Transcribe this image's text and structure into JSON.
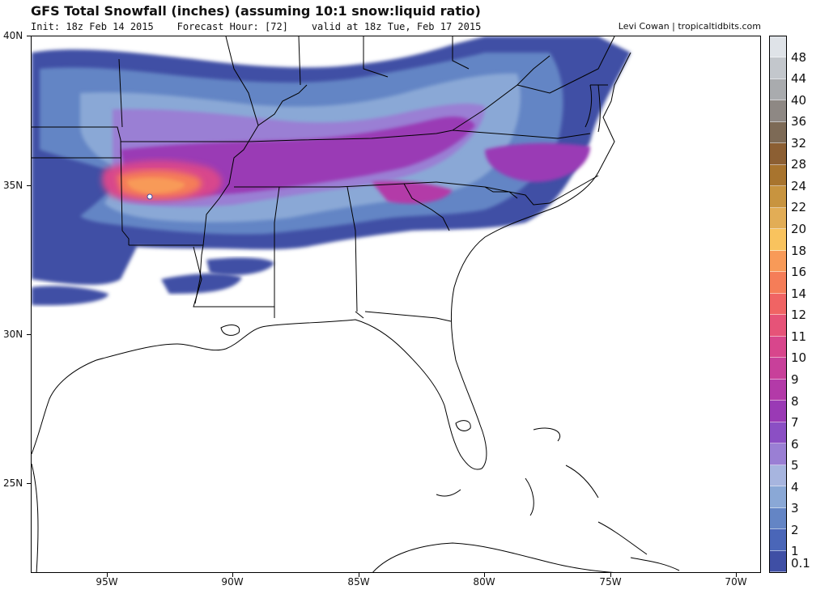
{
  "header": {
    "title": "GFS Total Snowfall (inches) (assuming 10:1 snow:liquid ratio)",
    "init": "Init: 18z Feb 14 2015",
    "forecast_hour": "Forecast Hour: [72]",
    "valid": "valid at 18z Tue, Feb 17 2015",
    "credit": "Levi Cowan | tropicaltidbits.com"
  },
  "map": {
    "lat_labels": [
      "40N",
      "35N",
      "30N",
      "25N"
    ],
    "lon_labels": [
      "95W",
      "90W",
      "85W",
      "80W",
      "75W",
      "70W"
    ],
    "bounds": {
      "west": -97.8,
      "east": -68.8,
      "south": 22.0,
      "north": 40.0
    }
  },
  "colorbar": {
    "levels": [
      "0.1",
      "1",
      "2",
      "3",
      "4",
      "5",
      "6",
      "7",
      "8",
      "9",
      "10",
      "11",
      "12",
      "14",
      "16",
      "18",
      "20",
      "22",
      "24",
      "28",
      "32",
      "36",
      "40",
      "44",
      "48"
    ],
    "colors": [
      "#3f4fa5",
      "#4a66b8",
      "#6485c5",
      "#8aa8d6",
      "#a7b5df",
      "#9a7fd4",
      "#8b4fc4",
      "#9a3ab5",
      "#b33aa8",
      "#c8409a",
      "#d8468c",
      "#e65378",
      "#f06464",
      "#f57d58",
      "#f89a58",
      "#f9c35e",
      "#e2ad56",
      "#c8943f",
      "#a8742e",
      "#8c5f33",
      "#7d6a56",
      "#8e8884",
      "#a9abae",
      "#c3c7cc",
      "#dfe3e8"
    ]
  }
}
